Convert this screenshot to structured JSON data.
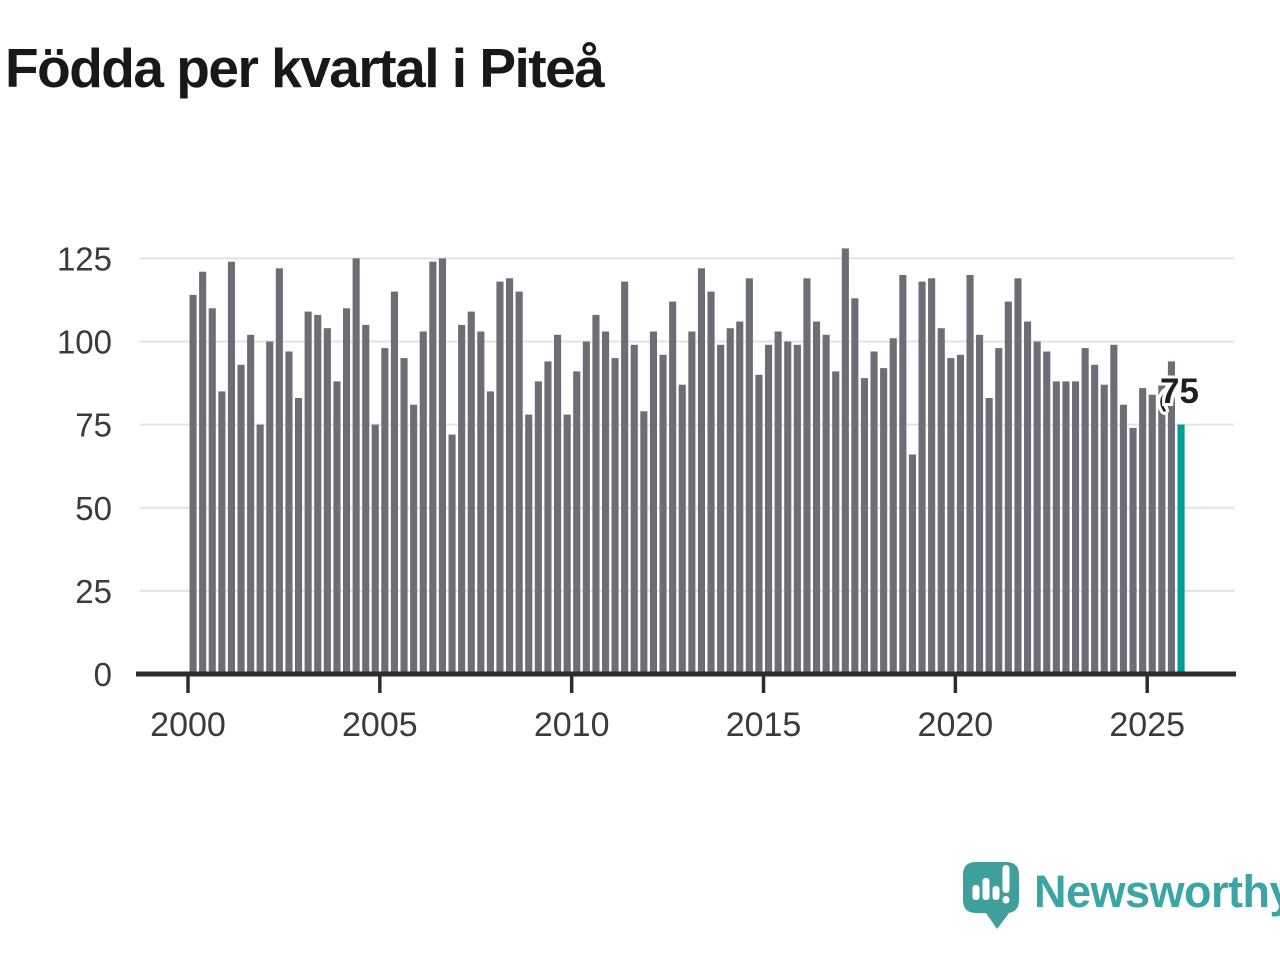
{
  "title": "Födda per kvartal i Piteå",
  "annotation": {
    "label": "75"
  },
  "branding": {
    "name": "Newsworthy"
  },
  "colors": {
    "bar": "#6d6d75",
    "highlight": "#009c96",
    "gridline": "#e3e3e3",
    "axis": "#2d2d2d",
    "tick_label": "#3b3b3b",
    "title": "#181818",
    "annotation": "#1f1f1f",
    "logo": "#3f9f9b",
    "logo_text": "#3aa5a4"
  },
  "chart_data": {
    "type": "bar",
    "title": "Födda per kvartal i Piteå",
    "frequency": "quarterly",
    "start_year": 2000,
    "end_label": "2025 Q4",
    "highlight_last": true,
    "highlight_value": 75,
    "x_tick_labels": [
      "2000",
      "2005",
      "2010",
      "2015",
      "2020",
      "2025"
    ],
    "y_ticks": [
      0,
      25,
      50,
      75,
      100,
      125
    ],
    "ylim": [
      0,
      130
    ],
    "grid": true,
    "legend": "none",
    "values": [
      114,
      121,
      110,
      85,
      124,
      93,
      102,
      75,
      100,
      122,
      97,
      83,
      109,
      108,
      104,
      88,
      110,
      125,
      105,
      75,
      98,
      115,
      95,
      81,
      103,
      124,
      125,
      72,
      105,
      109,
      103,
      85,
      118,
      119,
      115,
      78,
      88,
      94,
      102,
      78,
      91,
      100,
      108,
      103,
      95,
      118,
      99,
      79,
      103,
      96,
      112,
      87,
      103,
      122,
      115,
      99,
      104,
      106,
      119,
      90,
      99,
      103,
      100,
      99,
      119,
      106,
      102,
      91,
      128,
      113,
      89,
      97,
      92,
      101,
      120,
      66,
      118,
      119,
      104,
      95,
      96,
      120,
      102,
      83,
      98,
      112,
      119,
      106,
      100,
      97,
      88,
      88,
      88,
      98,
      93,
      87,
      99,
      81,
      74,
      86,
      84,
      87,
      94,
      75
    ]
  }
}
